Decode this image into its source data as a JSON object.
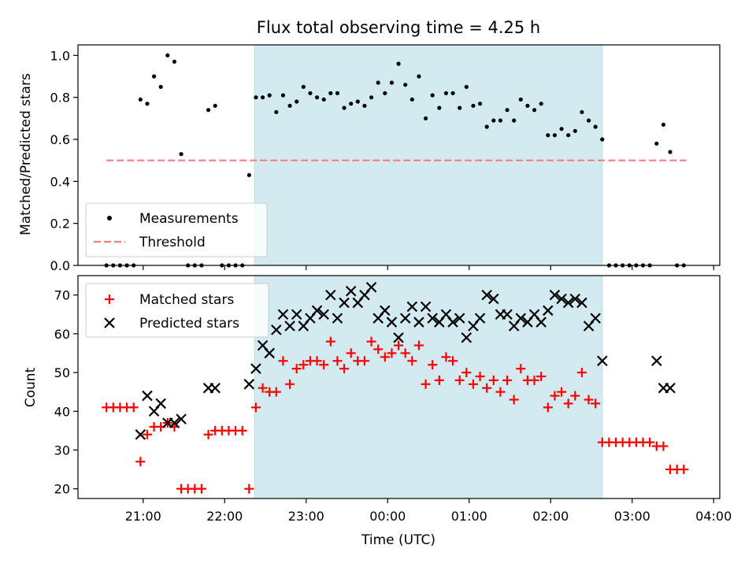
{
  "title": "Flux total observing time = 4.25 h",
  "xlabel": "Time (UTC)",
  "x_tick_labels": [
    "21:00",
    "22:00",
    "23:00",
    "00:00",
    "01:00",
    "02:00",
    "03:00",
    "04:00"
  ],
  "colors": {
    "shade": "#d3eaf0",
    "shade_edge": "#b8dbe6",
    "threshold": "#f08080",
    "measurement": "#000000",
    "matched": "#ff0000",
    "predicted": "#000000"
  },
  "chart_data": [
    {
      "type": "scatter",
      "name": "ratio",
      "ylabel": "Matched/Predicted stars",
      "ylim": [
        0,
        1.05
      ],
      "y_ticks": [
        "0.0",
        "0.2",
        "0.4",
        "0.6",
        "0.8",
        "1.0"
      ],
      "x_unit": "UTC time",
      "shaded_interval": {
        "start": "22:22",
        "end": "02:38"
      },
      "threshold": {
        "label": "Threshold",
        "value": 0.5,
        "start": "20:33",
        "end": "03:40"
      },
      "legend": {
        "placement": "lower-left",
        "entries": [
          "Measurements",
          "Threshold"
        ]
      },
      "series": [
        {
          "name": "Measurements",
          "x": [
            "20:33",
            "20:38",
            "20:43",
            "20:48",
            "20:53",
            "20:58",
            "21:03",
            "21:08",
            "21:13",
            "21:18",
            "21:23",
            "21:28",
            "21:33",
            "21:38",
            "21:43",
            "21:48",
            "21:53",
            "21:58",
            "22:03",
            "22:08",
            "22:13",
            "22:18",
            "22:23",
            "22:28",
            "22:33",
            "22:38",
            "22:43",
            "22:48",
            "22:53",
            "22:58",
            "23:03",
            "23:08",
            "23:13",
            "23:18",
            "23:23",
            "23:28",
            "23:33",
            "23:38",
            "23:43",
            "23:48",
            "23:53",
            "23:58",
            "00:03",
            "00:08",
            "00:13",
            "00:18",
            "00:23",
            "00:28",
            "00:33",
            "00:38",
            "00:43",
            "00:48",
            "00:53",
            "00:58",
            "01:03",
            "01:08",
            "01:13",
            "01:18",
            "01:23",
            "01:28",
            "01:33",
            "01:38",
            "01:43",
            "01:48",
            "01:53",
            "01:58",
            "02:03",
            "02:08",
            "02:13",
            "02:18",
            "02:23",
            "02:28",
            "02:33",
            "02:38",
            "02:43",
            "02:48",
            "02:53",
            "02:58",
            "03:03",
            "03:08",
            "03:13",
            "03:18",
            "03:23",
            "03:28",
            "03:33",
            "03:38"
          ],
          "y": [
            0,
            0,
            0,
            0,
            0,
            0.79,
            0.77,
            0.9,
            0.85,
            1.0,
            0.97,
            0.53,
            0,
            0,
            0,
            0.74,
            0.76,
            0,
            0,
            0,
            0,
            0.43,
            0.8,
            0.8,
            0.81,
            0.73,
            0.81,
            0.76,
            0.78,
            0.85,
            0.82,
            0.8,
            0.79,
            0.82,
            0.82,
            0.75,
            0.77,
            0.78,
            0.76,
            0.8,
            0.87,
            0.82,
            0.87,
            0.96,
            0.86,
            0.79,
            0.9,
            0.7,
            0.81,
            0.75,
            0.82,
            0.82,
            0.75,
            0.85,
            0.76,
            0.77,
            0.66,
            0.69,
            0.69,
            0.74,
            0.69,
            0.79,
            0.76,
            0.74,
            0.77,
            0.62,
            0.62,
            0.65,
            0.62,
            0.64,
            0.73,
            0.69,
            0.66,
            0.6,
            0,
            0,
            0,
            0,
            0,
            0,
            0,
            0.58,
            0.67,
            0.54,
            0,
            0
          ]
        }
      ]
    },
    {
      "type": "scatter",
      "name": "counts",
      "ylabel": "Count",
      "ylim": [
        17.5,
        75
      ],
      "y_ticks": [
        "20",
        "30",
        "40",
        "50",
        "60",
        "70"
      ],
      "x_unit": "UTC time",
      "shaded_interval": {
        "start": "22:22",
        "end": "02:38"
      },
      "legend": {
        "placement": "top-left",
        "entries": [
          "Matched stars",
          "Predicted stars"
        ]
      },
      "series": [
        {
          "name": "Matched stars",
          "x": [
            "20:33",
            "20:38",
            "20:43",
            "20:48",
            "20:53",
            "20:58",
            "21:03",
            "21:08",
            "21:13",
            "21:18",
            "21:23",
            "21:28",
            "21:33",
            "21:38",
            "21:43",
            "21:48",
            "21:53",
            "21:58",
            "22:03",
            "22:08",
            "22:13",
            "22:18",
            "22:23",
            "22:28",
            "22:33",
            "22:38",
            "22:43",
            "22:48",
            "22:53",
            "22:58",
            "23:03",
            "23:08",
            "23:13",
            "23:18",
            "23:23",
            "23:28",
            "23:33",
            "23:38",
            "23:43",
            "23:48",
            "23:53",
            "23:58",
            "00:03",
            "00:08",
            "00:13",
            "00:18",
            "00:23",
            "00:28",
            "00:33",
            "00:38",
            "00:43",
            "00:48",
            "00:53",
            "00:58",
            "01:03",
            "01:08",
            "01:13",
            "01:18",
            "01:23",
            "01:28",
            "01:33",
            "01:38",
            "01:43",
            "01:48",
            "01:53",
            "01:58",
            "02:03",
            "02:08",
            "02:13",
            "02:18",
            "02:23",
            "02:28",
            "02:33",
            "02:38",
            "02:43",
            "02:48",
            "02:53",
            "02:58",
            "03:03",
            "03:08",
            "03:13",
            "03:18",
            "03:23",
            "03:28",
            "03:33",
            "03:38"
          ],
          "y": [
            41,
            41,
            41,
            41,
            41,
            27,
            34,
            36,
            36,
            37,
            36,
            20,
            20,
            20,
            20,
            34,
            35,
            35,
            35,
            35,
            35,
            20,
            41,
            46,
            45,
            45,
            53,
            47,
            51,
            52,
            53,
            53,
            52,
            58,
            53,
            51,
            55,
            53,
            53,
            58,
            56,
            54,
            55,
            57,
            55,
            53,
            57,
            47,
            52,
            48,
            54,
            53,
            48,
            50,
            47,
            49,
            46,
            48,
            45,
            48,
            43,
            51,
            48,
            48,
            49,
            41,
            44,
            45,
            42,
            44,
            50,
            43,
            42,
            32,
            32,
            32,
            32,
            32,
            32,
            32,
            32,
            31,
            31,
            25,
            25,
            25
          ]
        },
        {
          "name": "Predicted stars",
          "x": [
            "20:58",
            "21:03",
            "21:08",
            "21:13",
            "21:18",
            "21:23",
            "21:28",
            "21:48",
            "21:53",
            "22:18",
            "22:23",
            "22:28",
            "22:33",
            "22:38",
            "22:43",
            "22:48",
            "22:53",
            "22:58",
            "23:03",
            "23:08",
            "23:13",
            "23:18",
            "23:23",
            "23:28",
            "23:33",
            "23:38",
            "23:43",
            "23:48",
            "23:53",
            "23:58",
            "00:03",
            "00:08",
            "00:13",
            "00:18",
            "00:23",
            "00:28",
            "00:33",
            "00:38",
            "00:43",
            "00:48",
            "00:53",
            "00:58",
            "01:03",
            "01:08",
            "01:13",
            "01:18",
            "01:23",
            "01:28",
            "01:33",
            "01:38",
            "01:43",
            "01:48",
            "01:53",
            "01:58",
            "02:03",
            "02:08",
            "02:13",
            "02:18",
            "02:23",
            "02:28",
            "02:33",
            "02:38",
            "03:18",
            "03:23",
            "03:28"
          ],
          "y": [
            34,
            44,
            40,
            42,
            37,
            37,
            38,
            46,
            46,
            47,
            51,
            57,
            55,
            61,
            65,
            62,
            65,
            62,
            64,
            66,
            65,
            70,
            64,
            68,
            71,
            68,
            70,
            72,
            64,
            66,
            63,
            59,
            64,
            67,
            63,
            67,
            64,
            63,
            65,
            63,
            64,
            59,
            62,
            64,
            70,
            69,
            65,
            65,
            62,
            64,
            63,
            65,
            63,
            66,
            70,
            69,
            68,
            69,
            68,
            62,
            64,
            53,
            53,
            46,
            46
          ]
        }
      ]
    }
  ]
}
